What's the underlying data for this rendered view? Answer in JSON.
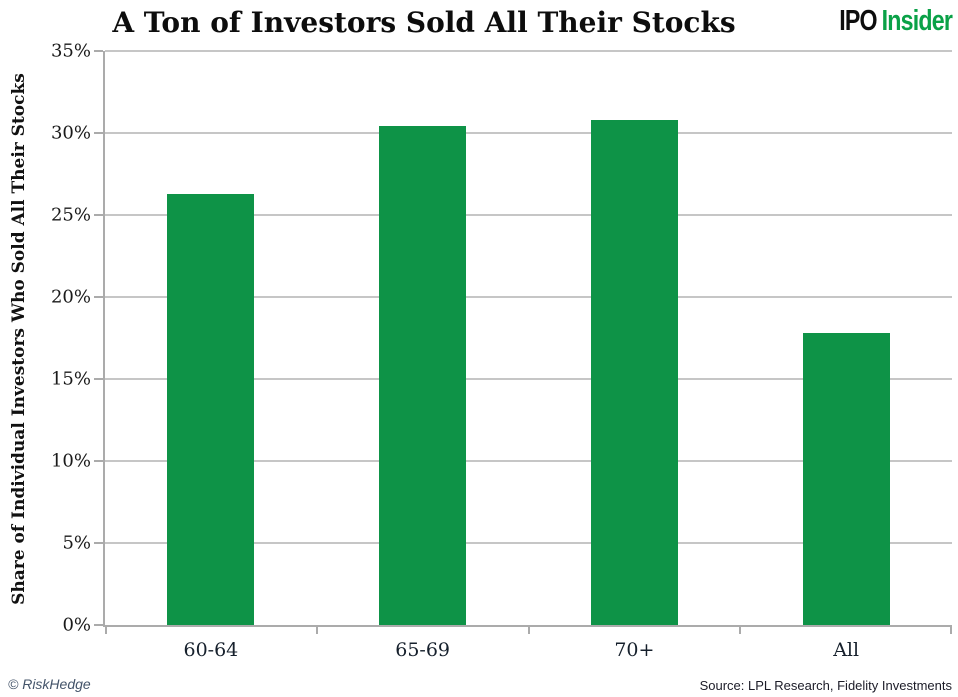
{
  "header": {
    "title": "A Ton of Investors Sold All Their Stocks",
    "logo": {
      "part1": "IPO",
      "part2": "Insider"
    }
  },
  "chart_data": {
    "type": "bar",
    "title": "A Ton of Investors Sold All Their Stocks",
    "categories": [
      "60-64",
      "65-69",
      "70+",
      "All"
    ],
    "values": [
      26.3,
      30.4,
      30.8,
      17.8
    ],
    "xlabel": "",
    "ylabel": "Share of Individual Investors Who Sold All Their Stocks",
    "ylim": [
      0,
      35
    ],
    "ytick_step": 5,
    "ytick_suffix": "%",
    "grid": true,
    "legend": "none",
    "bar_color": "#0e9347"
  },
  "footer": {
    "credit": "© RiskHedge",
    "source": "Source: LPL Research, Fidelity Investments"
  },
  "colors": {
    "bar_green": "#0e9347",
    "logo_green": "#0aa147",
    "gridline": "#c6c6c6",
    "axis": "#ababab"
  }
}
